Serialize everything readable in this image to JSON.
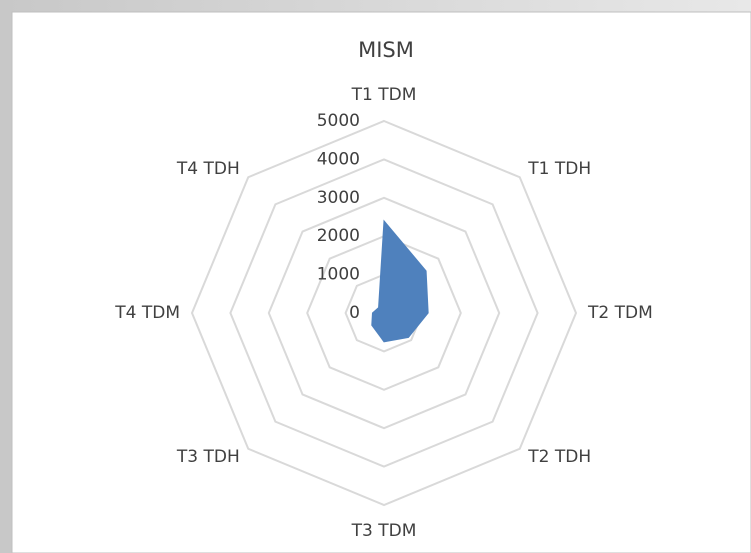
{
  "chart_data": {
    "type": "radar",
    "title": "MISM",
    "categories": [
      "T1 TDM",
      "T1 TDH",
      "T2 TDM",
      "T2 TDH",
      "T3 TDM",
      "T3 TDH",
      "T4 TDM",
      "T4 TDH"
    ],
    "series": [
      {
        "name": "MISM",
        "color": "#4f81bd",
        "values": [
          2400,
          1550,
          1150,
          900,
          750,
          450,
          300,
          200
        ]
      }
    ],
    "ylim": [
      0,
      5000
    ],
    "yticks": [
      0,
      1000,
      2000,
      3000,
      4000,
      5000
    ],
    "grid": true,
    "fill": true
  }
}
